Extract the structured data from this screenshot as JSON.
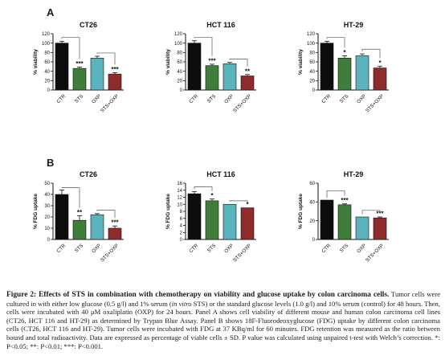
{
  "panels": {
    "a": "A",
    "b": "B"
  },
  "colors": {
    "CTR": "#0d0d0d",
    "STS": "#3e7d3a",
    "OXP": "#5ab3bd",
    "STS+OXP": "#8e2c2c"
  },
  "chart_data": [
    {
      "id": "a-ct26",
      "type": "bar",
      "title": "CT26",
      "ylabel": "% viability",
      "xlabel": "",
      "ylim": [
        0,
        120
      ],
      "yticks": [
        0,
        20,
        40,
        60,
        80,
        100,
        120
      ],
      "categories": [
        "CTR",
        "STS",
        "OXP",
        "STS+OXP"
      ],
      "values": [
        100,
        46,
        68,
        34
      ],
      "errors": [
        4,
        3,
        4,
        3
      ],
      "significance": [
        "",
        "***",
        "",
        "***"
      ],
      "brackets": [
        {
          "from": 0,
          "to": 1,
          "level": 112
        },
        {
          "from": 2,
          "to": 3,
          "level": 79
        }
      ]
    },
    {
      "id": "a-hct116",
      "type": "bar",
      "title": "HCT 116",
      "ylabel": "% viability",
      "xlabel": "",
      "ylim": [
        0,
        120
      ],
      "yticks": [
        0,
        20,
        40,
        60,
        80,
        100,
        120
      ],
      "categories": [
        "CTR",
        "STS",
        "OXP",
        "STS+OXP"
      ],
      "values": [
        100,
        52,
        56,
        30
      ],
      "errors": [
        5,
        3,
        3,
        3
      ],
      "significance": [
        "",
        "***",
        "",
        "**"
      ],
      "brackets": [
        {
          "from": 0,
          "to": 1,
          "level": 112
        },
        {
          "from": 2,
          "to": 3,
          "level": 66
        }
      ]
    },
    {
      "id": "a-ht29",
      "type": "bar",
      "title": "HT-29",
      "ylabel": "% viability",
      "xlabel": "",
      "ylim": [
        0,
        120
      ],
      "yticks": [
        0,
        20,
        40,
        60,
        80,
        100,
        120
      ],
      "categories": [
        "CTR",
        "STS",
        "OXP",
        "STS+OXP"
      ],
      "values": [
        100,
        68,
        73,
        47
      ],
      "errors": [
        4,
        5,
        4,
        4
      ],
      "significance": [
        "",
        "*",
        "",
        "*"
      ],
      "brackets": [
        {
          "from": 0,
          "to": 1,
          "level": 112
        },
        {
          "from": 2,
          "to": 3,
          "level": 87
        }
      ]
    },
    {
      "id": "b-ct26",
      "type": "bar",
      "title": "CT26",
      "ylabel": "% FDG uptake",
      "xlabel": "",
      "ylim": [
        0,
        50
      ],
      "yticks": [
        0,
        10,
        20,
        30,
        40,
        50
      ],
      "categories": [
        "CTR",
        "STS",
        "OXP",
        "STS+OXP"
      ],
      "values": [
        40,
        17,
        22,
        10
      ],
      "errors": [
        4,
        4,
        1,
        2
      ],
      "significance": [
        "",
        "**",
        "",
        "***"
      ],
      "brackets": [
        {
          "from": 0,
          "to": 1,
          "level": 46
        },
        {
          "from": 2,
          "to": 3,
          "level": 26
        }
      ]
    },
    {
      "id": "b-hct116",
      "type": "bar",
      "title": "HCT 116",
      "ylabel": "% FDG uptake",
      "xlabel": "",
      "ylim": [
        0,
        16
      ],
      "yticks": [
        0,
        2,
        4,
        6,
        8,
        10,
        12,
        14,
        16
      ],
      "categories": [
        "CTR",
        "STS",
        "OXP",
        "STS+OXP"
      ],
      "values": [
        13,
        11,
        10,
        9
      ],
      "errors": [
        0.6,
        0.5,
        0,
        0
      ],
      "significance": [
        "",
        "*",
        "",
        "*"
      ],
      "brackets": [
        {
          "from": 0,
          "to": 1,
          "level": 15
        },
        {
          "from": 2,
          "to": 3,
          "level": 11
        }
      ]
    },
    {
      "id": "b-ht29",
      "type": "bar",
      "title": "HT-29",
      "ylabel": "% FDG uptake",
      "xlabel": "",
      "ylim": [
        0,
        60
      ],
      "yticks": [
        0,
        20,
        40,
        60
      ],
      "categories": [
        "CTR",
        "STS",
        "OXP",
        "STS+OXP"
      ],
      "values": [
        42,
        37,
        24,
        23
      ],
      "errors": [
        0,
        1,
        0,
        1
      ],
      "significance": [
        "",
        "***",
        "",
        "***"
      ],
      "brackets": [
        {
          "from": 0,
          "to": 1,
          "level": 52
        },
        {
          "from": 2,
          "to": 3,
          "level": 31
        }
      ]
    }
  ],
  "caption": {
    "title": "Figure 2: Effects of STS in combination with chemotherapy on viability and glucose uptake by colon carcinoma cells.",
    "t1": " Tumor cells were cultured in with either low glucose (0.5 g/l) and 1% serum (",
    "t1_italic": "in vitro",
    "t2": " STS) or the standard glucose levels (1.0 g/l) and 10% serum (control) for 48 hours. Then, cells were incubated with 40 μM oxaliplatin (OXP) for 24 hours. Panel A shows cell viability of different mouse and human colon carcinoma cell lines (CT26, HCT 116 and HT-29) as determined by Trypan Blue Assay. Panel B shows 18F-Fluorodeoxyglucose (FDG) uptake by different colon carcinoma cells (CT26, HCT 116 and HT-29). Tumor cells were incubated with FDG at 37 KBq/ml for 60 minutes. FDG retention was measured as the ratio between bound and total radioactivity. Data are expressed as percentage of viable cells ± SD. P value was calculated using unpaired t-test with Welch’s correction. *: P<0.05; **: P<0.01; ***: P<0.001."
  }
}
